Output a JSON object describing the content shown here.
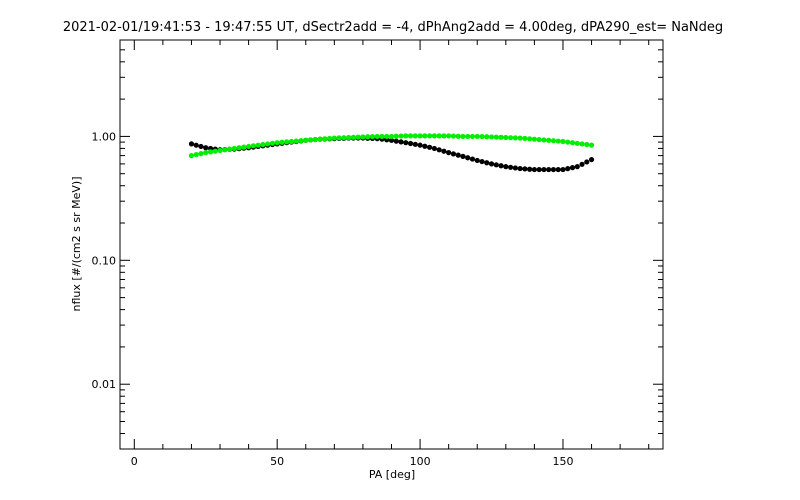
{
  "chart_data": {
    "type": "scatter",
    "title": "2021-02-01/19:41:53 - 19:47:55 UT, dSectr2add = -4, dPhAng2add = 4.00deg, dPA290_est=   NaNdeg",
    "xlabel": "PA [deg]",
    "ylabel": "nflux [#/(cm2 s sr MeV)]",
    "xlim": [
      -5,
      185
    ],
    "ylim": [
      0.003,
      6.0
    ],
    "yscale": "log",
    "x_ticks": [
      {
        "value": 0,
        "label": "0"
      },
      {
        "value": 50,
        "label": "50"
      },
      {
        "value": 100,
        "label": "100"
      },
      {
        "value": 150,
        "label": "150"
      }
    ],
    "y_ticks": [
      {
        "value": 0.01,
        "label": "0.01"
      },
      {
        "value": 0.1,
        "label": "0.10"
      },
      {
        "value": 1.0,
        "label": "1.00"
      }
    ],
    "grid": false,
    "legend": "none",
    "series": [
      {
        "color": "#000000",
        "points": [
          [
            20,
            0.87
          ],
          [
            25,
            0.81
          ],
          [
            30,
            0.78
          ],
          [
            35,
            0.79
          ],
          [
            40,
            0.81
          ],
          [
            45,
            0.84
          ],
          [
            50,
            0.87
          ],
          [
            55,
            0.9
          ],
          [
            60,
            0.93
          ],
          [
            65,
            0.95
          ],
          [
            70,
            0.96
          ],
          [
            75,
            0.97
          ],
          [
            80,
            0.97
          ],
          [
            85,
            0.96
          ],
          [
            90,
            0.93
          ],
          [
            95,
            0.89
          ],
          [
            100,
            0.85
          ],
          [
            105,
            0.8
          ],
          [
            110,
            0.74
          ],
          [
            115,
            0.69
          ],
          [
            120,
            0.64
          ],
          [
            125,
            0.6
          ],
          [
            130,
            0.57
          ],
          [
            135,
            0.55
          ],
          [
            140,
            0.54
          ],
          [
            145,
            0.54
          ],
          [
            150,
            0.54
          ],
          [
            155,
            0.57
          ],
          [
            160,
            0.65
          ]
        ]
      },
      {
        "color": "#00ee00",
        "points": [
          [
            20,
            0.7
          ],
          [
            25,
            0.74
          ],
          [
            30,
            0.77
          ],
          [
            35,
            0.8
          ],
          [
            40,
            0.83
          ],
          [
            45,
            0.86
          ],
          [
            50,
            0.89
          ],
          [
            55,
            0.91
          ],
          [
            60,
            0.93
          ],
          [
            65,
            0.95
          ],
          [
            70,
            0.97
          ],
          [
            75,
            0.98
          ],
          [
            80,
            0.99
          ],
          [
            85,
            1.0
          ],
          [
            90,
            1.0
          ],
          [
            95,
            1.01
          ],
          [
            100,
            1.01
          ],
          [
            105,
            1.01
          ],
          [
            110,
            1.01
          ],
          [
            115,
            1.0
          ],
          [
            120,
            1.0
          ],
          [
            125,
            0.99
          ],
          [
            130,
            0.98
          ],
          [
            135,
            0.97
          ],
          [
            140,
            0.95
          ],
          [
            145,
            0.93
          ],
          [
            150,
            0.91
          ],
          [
            155,
            0.88
          ],
          [
            160,
            0.85
          ]
        ]
      }
    ]
  }
}
